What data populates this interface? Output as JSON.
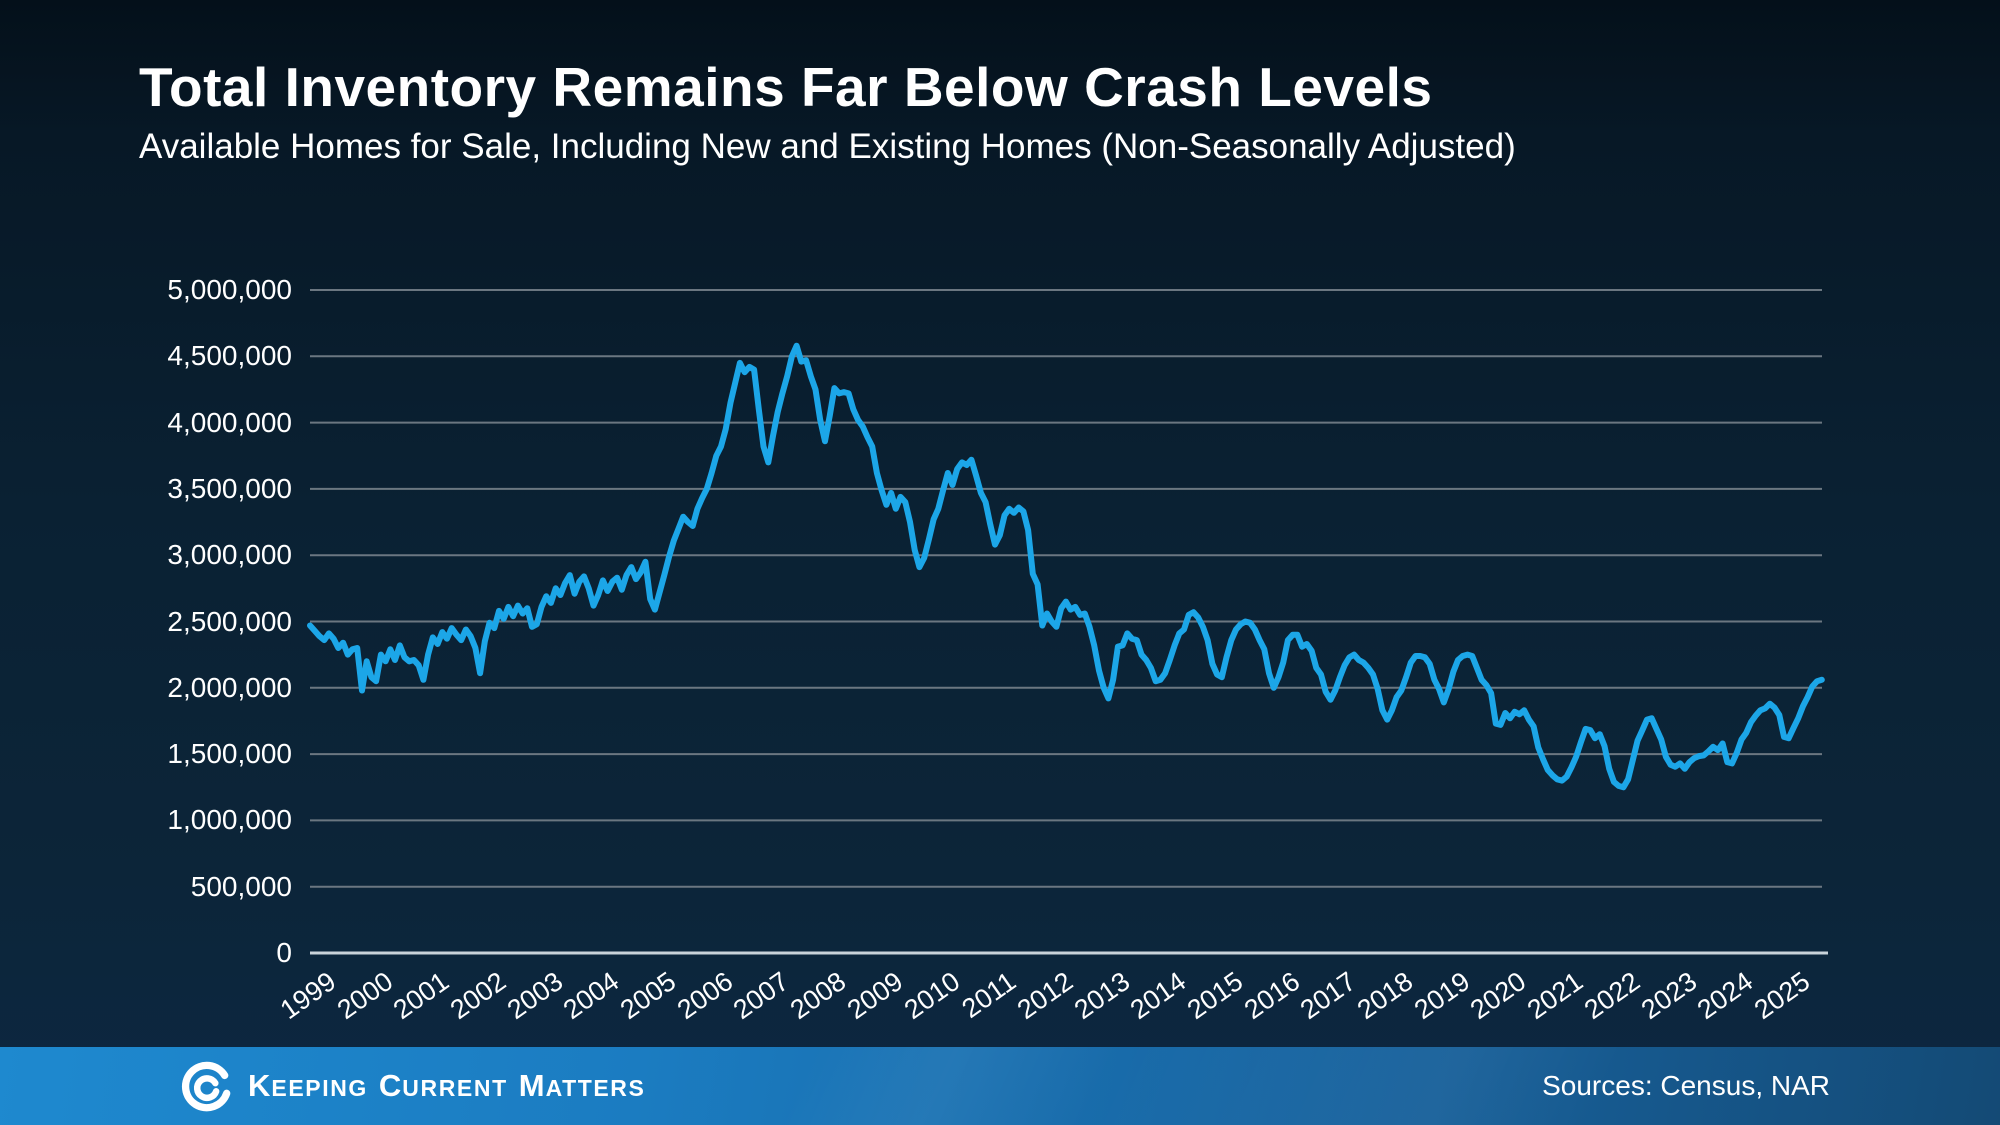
{
  "page": {
    "title": "Total Inventory Remains Far Below Crash Levels",
    "subtitle": "Available Homes for Sale, Including New and Existing Homes (Non-Seasonally Adjusted)"
  },
  "footer": {
    "brand": {
      "logo_icon": "kcm-swirl-logo",
      "words": [
        {
          "lead": "K",
          "rest": "EEPING"
        },
        {
          "lead": "C",
          "rest": "URRENT"
        },
        {
          "lead": "M",
          "rest": "ATTERS"
        }
      ]
    },
    "sources_label": "Sources: Census, NAR"
  },
  "colors": {
    "background_top": "#04101a",
    "background_bottom": "#0d2742",
    "text": "#ffffff",
    "gridline": "#6b7781",
    "axis_line": "#c9d3da",
    "line": "#1CA6E8",
    "footer_gradient_left": "#1e89cf",
    "footer_gradient_right": "#144a75"
  },
  "chart_data": {
    "type": "line",
    "title": "Total Inventory Remains Far Below Crash Levels",
    "subtitle": "Available Homes for Sale, Including New and Existing Homes (Non-Seasonally Adjusted)",
    "xlabel": "",
    "ylabel": "",
    "x_start": "1999-01",
    "x_end": "2025-09",
    "frequency": "monthly",
    "ylim": [
      0,
      5000000
    ],
    "grid": true,
    "legend_position": "none",
    "line_color": "#1CA6E8",
    "x_tick_labels": [
      "1999",
      "2000",
      "2001",
      "2002",
      "2003",
      "2004",
      "2005",
      "2006",
      "2007",
      "2008",
      "2009",
      "2010",
      "2011",
      "2012",
      "2013",
      "2014",
      "2015",
      "2016",
      "2017",
      "2018",
      "2019",
      "2020",
      "2021",
      "2022",
      "2023",
      "2024",
      "2025"
    ],
    "y_ticks": [
      0,
      500000,
      1000000,
      1500000,
      2000000,
      2500000,
      3000000,
      3500000,
      4000000,
      4500000,
      5000000
    ],
    "y_tick_labels": [
      "0",
      "500,000",
      "1,000,000",
      "1,500,000",
      "2,000,000",
      "2,500,000",
      "3,000,000",
      "3,500,000",
      "4,000,000",
      "4,500,000",
      "5,000,000"
    ],
    "series": [
      {
        "name": "Available Homes for Sale",
        "values": [
          2470000,
          2430000,
          2390000,
          2360000,
          2410000,
          2370000,
          2300000,
          2340000,
          2250000,
          2290000,
          2300000,
          1980000,
          2200000,
          2080000,
          2050000,
          2250000,
          2200000,
          2290000,
          2210000,
          2320000,
          2230000,
          2200000,
          2210000,
          2170000,
          2060000,
          2250000,
          2380000,
          2330000,
          2420000,
          2370000,
          2450000,
          2400000,
          2360000,
          2440000,
          2390000,
          2300000,
          2110000,
          2350000,
          2490000,
          2450000,
          2580000,
          2520000,
          2610000,
          2540000,
          2620000,
          2560000,
          2600000,
          2460000,
          2480000,
          2610000,
          2690000,
          2640000,
          2750000,
          2700000,
          2790000,
          2850000,
          2710000,
          2800000,
          2840000,
          2750000,
          2620000,
          2700000,
          2810000,
          2730000,
          2800000,
          2830000,
          2740000,
          2850000,
          2910000,
          2820000,
          2870000,
          2950000,
          2670000,
          2590000,
          2720000,
          2850000,
          2990000,
          3110000,
          3200000,
          3290000,
          3250000,
          3220000,
          3350000,
          3430000,
          3500000,
          3620000,
          3750000,
          3820000,
          3950000,
          4150000,
          4300000,
          4450000,
          4380000,
          4420000,
          4400000,
          4100000,
          3820000,
          3700000,
          3900000,
          4080000,
          4220000,
          4350000,
          4500000,
          4580000,
          4460000,
          4470000,
          4350000,
          4250000,
          4020000,
          3860000,
          4050000,
          4260000,
          4220000,
          4230000,
          4220000,
          4100000,
          4020000,
          3970000,
          3890000,
          3820000,
          3620000,
          3490000,
          3380000,
          3470000,
          3350000,
          3440000,
          3400000,
          3250000,
          3040000,
          2910000,
          2980000,
          3120000,
          3270000,
          3350000,
          3490000,
          3620000,
          3530000,
          3650000,
          3700000,
          3680000,
          3720000,
          3600000,
          3470000,
          3400000,
          3230000,
          3080000,
          3150000,
          3300000,
          3350000,
          3320000,
          3360000,
          3330000,
          3190000,
          2860000,
          2780000,
          2470000,
          2560000,
          2500000,
          2460000,
          2600000,
          2650000,
          2590000,
          2610000,
          2550000,
          2560000,
          2460000,
          2320000,
          2130000,
          2000000,
          1920000,
          2060000,
          2310000,
          2320000,
          2410000,
          2370000,
          2360000,
          2250000,
          2210000,
          2150000,
          2050000,
          2060000,
          2110000,
          2210000,
          2320000,
          2410000,
          2440000,
          2550000,
          2570000,
          2530000,
          2460000,
          2360000,
          2180000,
          2100000,
          2080000,
          2230000,
          2360000,
          2440000,
          2480000,
          2500000,
          2490000,
          2440000,
          2360000,
          2290000,
          2110000,
          2000000,
          2080000,
          2190000,
          2360000,
          2400000,
          2400000,
          2310000,
          2330000,
          2280000,
          2150000,
          2100000,
          1970000,
          1910000,
          1980000,
          2080000,
          2170000,
          2230000,
          2250000,
          2210000,
          2190000,
          2150000,
          2100000,
          1990000,
          1830000,
          1760000,
          1830000,
          1930000,
          1980000,
          2080000,
          2190000,
          2240000,
          2240000,
          2230000,
          2180000,
          2060000,
          1990000,
          1890000,
          1990000,
          2120000,
          2210000,
          2240000,
          2250000,
          2240000,
          2150000,
          2060000,
          2020000,
          1960000,
          1730000,
          1720000,
          1810000,
          1770000,
          1820000,
          1800000,
          1830000,
          1760000,
          1710000,
          1550000,
          1460000,
          1380000,
          1340000,
          1310000,
          1300000,
          1330000,
          1400000,
          1480000,
          1590000,
          1690000,
          1680000,
          1620000,
          1650000,
          1560000,
          1390000,
          1290000,
          1260000,
          1250000,
          1310000,
          1455000,
          1600000,
          1680000,
          1760000,
          1770000,
          1690000,
          1610000,
          1480000,
          1420000,
          1405000,
          1430000,
          1390000,
          1440000,
          1470000,
          1485000,
          1490000,
          1520000,
          1555000,
          1530000,
          1580000,
          1440000,
          1430000,
          1510000,
          1610000,
          1660000,
          1740000,
          1790000,
          1830000,
          1845000,
          1880000,
          1850000,
          1795000,
          1630000,
          1620000,
          1695000,
          1770000,
          1860000,
          1930000,
          2010000,
          2050000,
          2060000
        ]
      }
    ]
  }
}
